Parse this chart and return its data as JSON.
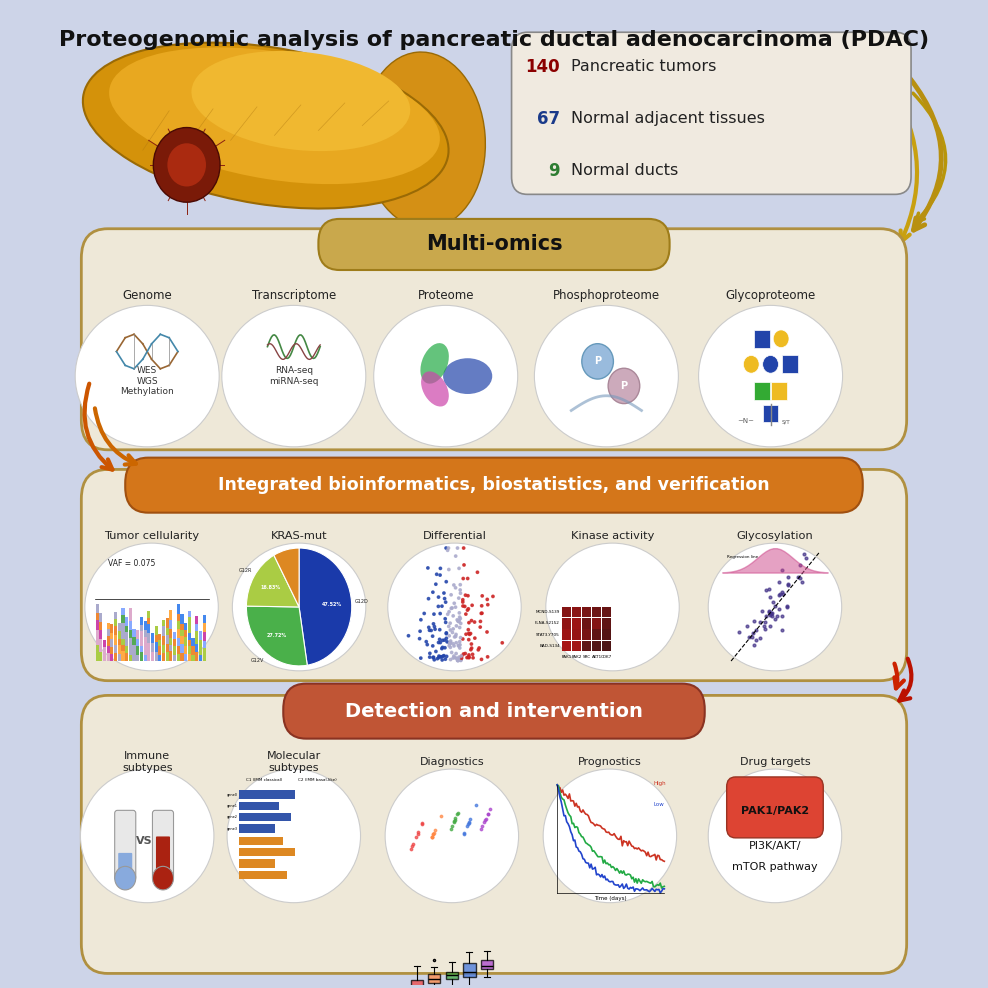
{
  "title": "Proteogenomic analysis of pancreatic ductal adenocarcinoma (PDAC)",
  "title_fontsize": 16,
  "title_fontweight": "bold",
  "bg_color": "#cdd4e8",
  "sample_box": {
    "numbers": [
      "140",
      "67",
      "9"
    ],
    "number_colors": [
      "#8b0000",
      "#1a3a8a",
      "#2e7d32"
    ],
    "labels": [
      "Pancreatic tumors",
      "Normal adjacent tissues",
      "Normal ducts"
    ],
    "label_color": "#222222",
    "fontsize": 12
  },
  "section1": {
    "label": "Multi-omics",
    "bg": "#c9a84c",
    "text_color": "#111111",
    "fontsize": 15,
    "fontweight": "bold",
    "border": "#9e7c1a",
    "cols": [
      "Genome",
      "Transcriptome",
      "Proteome",
      "Phosphoproteome",
      "Glycoproteome"
    ],
    "subcols": [
      "WES\nWGS\nMethylation",
      "RNA-seq\nmiRNA-seq",
      "",
      "",
      ""
    ],
    "box_bg": "#eee8d8",
    "box_border": "#b09040"
  },
  "section2": {
    "label": "Integrated bioinformatics, biostatistics, and verification",
    "bg": "#d4761a",
    "text_color": "#ffffff",
    "fontsize": 12.5,
    "fontweight": "bold",
    "border": "#a05010",
    "cols": [
      "Tumor cellularity",
      "KRAS-mut",
      "Differential",
      "Kinase activity",
      "Glycosylation"
    ],
    "box_bg": "#eee8d8",
    "box_border": "#b09040"
  },
  "section3": {
    "label": "Detection and intervention",
    "bg": "#c05535",
    "text_color": "#ffffff",
    "fontsize": 14,
    "fontweight": "bold",
    "border": "#8a3322",
    "cols": [
      "Immune\nsubtypes",
      "Molecular\nsubtypes",
      "Diagnostics",
      "Prognostics",
      "Drug targets"
    ],
    "drug_lines": [
      "PAK1/PAK2",
      "PI3K/AKT/",
      "mTOR pathway"
    ],
    "box_bg": "#eee8d8",
    "box_border": "#b09040"
  }
}
